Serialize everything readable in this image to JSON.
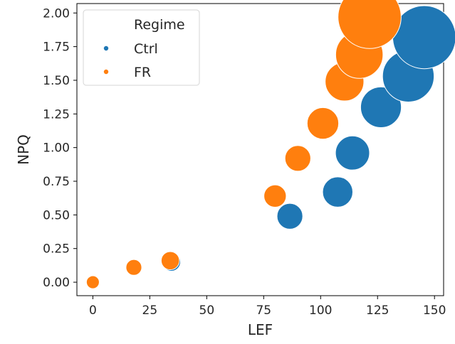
{
  "chart_data": {
    "type": "scatter",
    "xlabel": "LEF",
    "ylabel": "NPQ",
    "xlim": [
      -7,
      154
    ],
    "ylim": [
      -0.1,
      2.07
    ],
    "xticks": [
      0,
      25,
      50,
      75,
      100,
      125,
      150
    ],
    "yticks": [
      0.0,
      0.25,
      0.5,
      0.75,
      1.0,
      1.25,
      1.5,
      1.75,
      2.0
    ],
    "xtick_labels": [
      "0",
      "25",
      "50",
      "75",
      "100",
      "125",
      "150"
    ],
    "ytick_labels": [
      "0.00",
      "0.25",
      "0.50",
      "0.75",
      "1.00",
      "1.25",
      "1.50",
      "1.75",
      "2.00"
    ],
    "grid": false,
    "legend": {
      "title": "Regime",
      "placement": "top-left",
      "entries": [
        "Ctrl",
        "FR"
      ]
    },
    "series": [
      {
        "name": "Ctrl",
        "color": "#1f77b4",
        "x": [
          0,
          34.5,
          86.5,
          107.5,
          114,
          126.5,
          138.5,
          145.5
        ],
        "y": [
          0.0,
          0.15,
          0.49,
          0.67,
          0.96,
          1.3,
          1.53,
          1.82
        ],
        "size": [
          1,
          4,
          8,
          11,
          14,
          20,
          32,
          48
        ]
      },
      {
        "name": "FR",
        "color": "#ff7f0e",
        "x": [
          0,
          18,
          34,
          80,
          90,
          101,
          110.5,
          117,
          121.5
        ],
        "y": [
          0.0,
          0.11,
          0.16,
          0.64,
          0.92,
          1.18,
          1.49,
          1.69,
          1.97
        ],
        "size": [
          2,
          3,
          4,
          6,
          8,
          12,
          18,
          27,
          48
        ]
      }
    ]
  }
}
